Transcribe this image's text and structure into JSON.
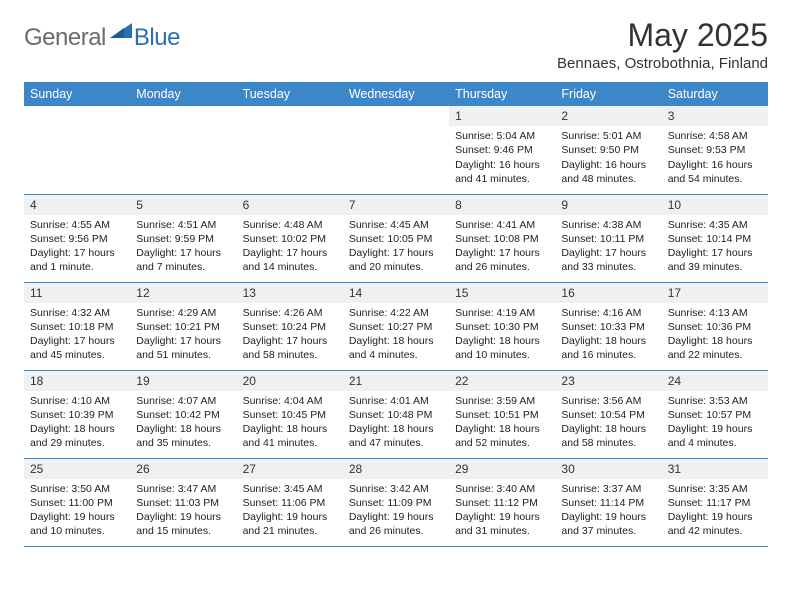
{
  "logo": {
    "general": "General",
    "blue": "Blue"
  },
  "title": "May 2025",
  "location": "Bennaes, Ostrobothnia, Finland",
  "colors": {
    "header_bg": "#3b87c8",
    "header_text": "#ffffff",
    "daynum_bg": "#eef0f2",
    "border": "#3b87c8",
    "logo_gray": "#6b6b6b",
    "logo_blue": "#2a6fb5",
    "text": "#333333"
  },
  "day_headers": [
    "Sunday",
    "Monday",
    "Tuesday",
    "Wednesday",
    "Thursday",
    "Friday",
    "Saturday"
  ],
  "weeks": [
    [
      {
        "n": "",
        "lines": [
          "",
          "",
          ""
        ]
      },
      {
        "n": "",
        "lines": [
          "",
          "",
          ""
        ]
      },
      {
        "n": "",
        "lines": [
          "",
          "",
          ""
        ]
      },
      {
        "n": "",
        "lines": [
          "",
          "",
          ""
        ]
      },
      {
        "n": "1",
        "lines": [
          "Sunrise: 5:04 AM",
          "Sunset: 9:46 PM",
          "Daylight: 16 hours and 41 minutes."
        ]
      },
      {
        "n": "2",
        "lines": [
          "Sunrise: 5:01 AM",
          "Sunset: 9:50 PM",
          "Daylight: 16 hours and 48 minutes."
        ]
      },
      {
        "n": "3",
        "lines": [
          "Sunrise: 4:58 AM",
          "Sunset: 9:53 PM",
          "Daylight: 16 hours and 54 minutes."
        ]
      }
    ],
    [
      {
        "n": "4",
        "lines": [
          "Sunrise: 4:55 AM",
          "Sunset: 9:56 PM",
          "Daylight: 17 hours and 1 minute."
        ]
      },
      {
        "n": "5",
        "lines": [
          "Sunrise: 4:51 AM",
          "Sunset: 9:59 PM",
          "Daylight: 17 hours and 7 minutes."
        ]
      },
      {
        "n": "6",
        "lines": [
          "Sunrise: 4:48 AM",
          "Sunset: 10:02 PM",
          "Daylight: 17 hours and 14 minutes."
        ]
      },
      {
        "n": "7",
        "lines": [
          "Sunrise: 4:45 AM",
          "Sunset: 10:05 PM",
          "Daylight: 17 hours and 20 minutes."
        ]
      },
      {
        "n": "8",
        "lines": [
          "Sunrise: 4:41 AM",
          "Sunset: 10:08 PM",
          "Daylight: 17 hours and 26 minutes."
        ]
      },
      {
        "n": "9",
        "lines": [
          "Sunrise: 4:38 AM",
          "Sunset: 10:11 PM",
          "Daylight: 17 hours and 33 minutes."
        ]
      },
      {
        "n": "10",
        "lines": [
          "Sunrise: 4:35 AM",
          "Sunset: 10:14 PM",
          "Daylight: 17 hours and 39 minutes."
        ]
      }
    ],
    [
      {
        "n": "11",
        "lines": [
          "Sunrise: 4:32 AM",
          "Sunset: 10:18 PM",
          "Daylight: 17 hours and 45 minutes."
        ]
      },
      {
        "n": "12",
        "lines": [
          "Sunrise: 4:29 AM",
          "Sunset: 10:21 PM",
          "Daylight: 17 hours and 51 minutes."
        ]
      },
      {
        "n": "13",
        "lines": [
          "Sunrise: 4:26 AM",
          "Sunset: 10:24 PM",
          "Daylight: 17 hours and 58 minutes."
        ]
      },
      {
        "n": "14",
        "lines": [
          "Sunrise: 4:22 AM",
          "Sunset: 10:27 PM",
          "Daylight: 18 hours and 4 minutes."
        ]
      },
      {
        "n": "15",
        "lines": [
          "Sunrise: 4:19 AM",
          "Sunset: 10:30 PM",
          "Daylight: 18 hours and 10 minutes."
        ]
      },
      {
        "n": "16",
        "lines": [
          "Sunrise: 4:16 AM",
          "Sunset: 10:33 PM",
          "Daylight: 18 hours and 16 minutes."
        ]
      },
      {
        "n": "17",
        "lines": [
          "Sunrise: 4:13 AM",
          "Sunset: 10:36 PM",
          "Daylight: 18 hours and 22 minutes."
        ]
      }
    ],
    [
      {
        "n": "18",
        "lines": [
          "Sunrise: 4:10 AM",
          "Sunset: 10:39 PM",
          "Daylight: 18 hours and 29 minutes."
        ]
      },
      {
        "n": "19",
        "lines": [
          "Sunrise: 4:07 AM",
          "Sunset: 10:42 PM",
          "Daylight: 18 hours and 35 minutes."
        ]
      },
      {
        "n": "20",
        "lines": [
          "Sunrise: 4:04 AM",
          "Sunset: 10:45 PM",
          "Daylight: 18 hours and 41 minutes."
        ]
      },
      {
        "n": "21",
        "lines": [
          "Sunrise: 4:01 AM",
          "Sunset: 10:48 PM",
          "Daylight: 18 hours and 47 minutes."
        ]
      },
      {
        "n": "22",
        "lines": [
          "Sunrise: 3:59 AM",
          "Sunset: 10:51 PM",
          "Daylight: 18 hours and 52 minutes."
        ]
      },
      {
        "n": "23",
        "lines": [
          "Sunrise: 3:56 AM",
          "Sunset: 10:54 PM",
          "Daylight: 18 hours and 58 minutes."
        ]
      },
      {
        "n": "24",
        "lines": [
          "Sunrise: 3:53 AM",
          "Sunset: 10:57 PM",
          "Daylight: 19 hours and 4 minutes."
        ]
      }
    ],
    [
      {
        "n": "25",
        "lines": [
          "Sunrise: 3:50 AM",
          "Sunset: 11:00 PM",
          "Daylight: 19 hours and 10 minutes."
        ]
      },
      {
        "n": "26",
        "lines": [
          "Sunrise: 3:47 AM",
          "Sunset: 11:03 PM",
          "Daylight: 19 hours and 15 minutes."
        ]
      },
      {
        "n": "27",
        "lines": [
          "Sunrise: 3:45 AM",
          "Sunset: 11:06 PM",
          "Daylight: 19 hours and 21 minutes."
        ]
      },
      {
        "n": "28",
        "lines": [
          "Sunrise: 3:42 AM",
          "Sunset: 11:09 PM",
          "Daylight: 19 hours and 26 minutes."
        ]
      },
      {
        "n": "29",
        "lines": [
          "Sunrise: 3:40 AM",
          "Sunset: 11:12 PM",
          "Daylight: 19 hours and 31 minutes."
        ]
      },
      {
        "n": "30",
        "lines": [
          "Sunrise: 3:37 AM",
          "Sunset: 11:14 PM",
          "Daylight: 19 hours and 37 minutes."
        ]
      },
      {
        "n": "31",
        "lines": [
          "Sunrise: 3:35 AM",
          "Sunset: 11:17 PM",
          "Daylight: 19 hours and 42 minutes."
        ]
      }
    ]
  ]
}
